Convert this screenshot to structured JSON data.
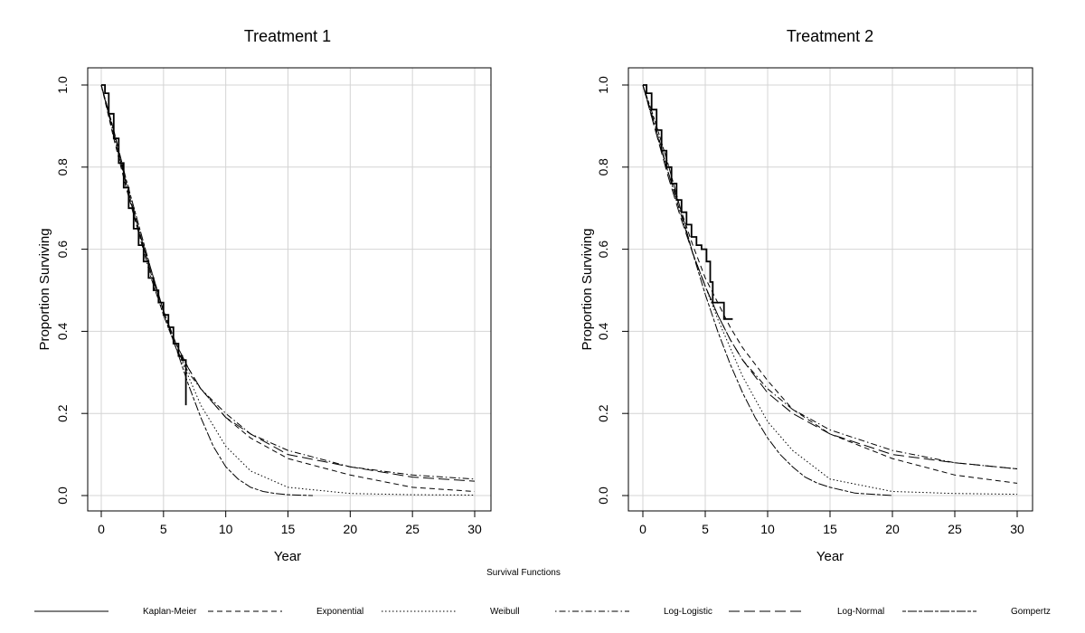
{
  "figure": {
    "legend_title": "Survival Functions"
  },
  "legend": [
    {
      "label": "Kaplan-Meier",
      "style": "solid"
    },
    {
      "label": "Exponential",
      "style": "dashed"
    },
    {
      "label": "Weibull",
      "style": "dotted"
    },
    {
      "label": "Log-Logistic",
      "style": "dotdash"
    },
    {
      "label": "Log-Normal",
      "style": "longdash"
    },
    {
      "label": "Gompertz",
      "style": "twodash"
    }
  ],
  "chart_data": [
    {
      "type": "line",
      "title": "Treatment 1",
      "xlabel": "Year",
      "ylabel": "Proportion Surviving",
      "xlim": [
        0,
        30
      ],
      "ylim": [
        0,
        1
      ],
      "xticks": [
        "0",
        "5",
        "10",
        "15",
        "20",
        "25",
        "30"
      ],
      "yticks": [
        "0.0",
        "0.2",
        "0.4",
        "0.6",
        "0.8",
        "1.0"
      ],
      "grid": true,
      "series": [
        {
          "name": "Kaplan-Meier",
          "style": "solid",
          "step": true,
          "x": [
            0,
            0.3,
            0.6,
            1.0,
            1.4,
            1.8,
            2.2,
            2.6,
            3.0,
            3.4,
            3.8,
            4.2,
            4.6,
            5.0,
            5.4,
            5.8,
            6.2,
            6.5,
            6.8
          ],
          "y": [
            1.0,
            0.98,
            0.93,
            0.87,
            0.81,
            0.75,
            0.7,
            0.65,
            0.61,
            0.57,
            0.53,
            0.5,
            0.47,
            0.44,
            0.41,
            0.37,
            0.34,
            0.33,
            0.22
          ]
        },
        {
          "name": "Exponential",
          "style": "dashed",
          "x": [
            0,
            1,
            2,
            3,
            4,
            5,
            6,
            7,
            8,
            10,
            12,
            15,
            20,
            25,
            30
          ],
          "y": [
            1.0,
            0.87,
            0.75,
            0.64,
            0.55,
            0.45,
            0.37,
            0.31,
            0.26,
            0.19,
            0.14,
            0.09,
            0.05,
            0.02,
            0.01
          ]
        },
        {
          "name": "Weibull",
          "style": "dotted",
          "x": [
            0,
            1,
            2,
            3,
            4,
            5,
            6,
            7,
            8,
            10,
            12,
            15,
            20,
            25,
            30
          ],
          "y": [
            1.0,
            0.88,
            0.76,
            0.65,
            0.54,
            0.44,
            0.36,
            0.29,
            0.22,
            0.12,
            0.06,
            0.02,
            0.005,
            0.002,
            0.001
          ]
        },
        {
          "name": "Log-Logistic",
          "style": "dotdash",
          "x": [
            0,
            1,
            2,
            3,
            4,
            5,
            6,
            7,
            8,
            10,
            12,
            15,
            20,
            25,
            30
          ],
          "y": [
            1.0,
            0.89,
            0.76,
            0.64,
            0.53,
            0.44,
            0.36,
            0.3,
            0.26,
            0.2,
            0.15,
            0.11,
            0.07,
            0.05,
            0.04
          ]
        },
        {
          "name": "Log-Normal",
          "style": "longdash",
          "x": [
            0,
            1,
            2,
            3,
            4,
            5,
            6,
            7,
            8,
            10,
            12,
            15,
            20,
            25,
            30
          ],
          "y": [
            1.0,
            0.88,
            0.76,
            0.65,
            0.54,
            0.45,
            0.37,
            0.31,
            0.26,
            0.19,
            0.15,
            0.1,
            0.07,
            0.045,
            0.035
          ]
        },
        {
          "name": "Gompertz",
          "style": "twodash",
          "x": [
            0,
            1,
            2,
            3,
            4,
            5,
            6,
            7,
            8,
            9,
            10,
            11,
            12,
            13,
            14,
            15,
            17
          ],
          "y": [
            1.0,
            0.89,
            0.77,
            0.66,
            0.55,
            0.45,
            0.36,
            0.27,
            0.19,
            0.12,
            0.07,
            0.04,
            0.02,
            0.01,
            0.005,
            0.002,
            0.0
          ]
        }
      ]
    },
    {
      "type": "line",
      "title": "Treatment 2",
      "xlabel": "Year",
      "ylabel": "Proportion Surviving",
      "xlim": [
        0,
        30
      ],
      "ylim": [
        0,
        1
      ],
      "xticks": [
        "0",
        "5",
        "10",
        "15",
        "20",
        "25",
        "30"
      ],
      "yticks": [
        "0.0",
        "0.2",
        "0.4",
        "0.6",
        "0.8",
        "1.0"
      ],
      "grid": true,
      "series": [
        {
          "name": "Kaplan-Meier",
          "style": "solid",
          "step": true,
          "x": [
            0,
            0.3,
            0.7,
            1.1,
            1.5,
            1.9,
            2.3,
            2.7,
            3.1,
            3.5,
            3.9,
            4.3,
            4.7,
            5.1,
            5.4,
            5.6,
            6.5,
            7.2
          ],
          "y": [
            1.0,
            0.98,
            0.94,
            0.89,
            0.84,
            0.8,
            0.76,
            0.72,
            0.69,
            0.66,
            0.63,
            0.61,
            0.6,
            0.57,
            0.52,
            0.47,
            0.43,
            0.43
          ]
        },
        {
          "name": "Exponential",
          "style": "dashed",
          "x": [
            0,
            1,
            2,
            3,
            4,
            5,
            6,
            7,
            8,
            10,
            12,
            15,
            20,
            25,
            30
          ],
          "y": [
            1.0,
            0.89,
            0.79,
            0.7,
            0.61,
            0.53,
            0.47,
            0.41,
            0.36,
            0.28,
            0.21,
            0.15,
            0.09,
            0.05,
            0.03
          ]
        },
        {
          "name": "Weibull",
          "style": "dotted",
          "x": [
            0,
            1,
            2,
            3,
            4,
            5,
            6,
            7,
            8,
            10,
            12,
            15,
            20,
            25,
            30
          ],
          "y": [
            1.0,
            0.9,
            0.79,
            0.69,
            0.59,
            0.51,
            0.43,
            0.36,
            0.29,
            0.18,
            0.11,
            0.04,
            0.01,
            0.005,
            0.003
          ]
        },
        {
          "name": "Log-Logistic",
          "style": "dotdash",
          "x": [
            0,
            1,
            2,
            3,
            4,
            5,
            6,
            7,
            8,
            10,
            12,
            15,
            20,
            25,
            30
          ],
          "y": [
            1.0,
            0.9,
            0.79,
            0.69,
            0.59,
            0.51,
            0.44,
            0.38,
            0.33,
            0.26,
            0.21,
            0.16,
            0.11,
            0.08,
            0.065
          ]
        },
        {
          "name": "Log-Normal",
          "style": "longdash",
          "x": [
            0,
            1,
            2,
            3,
            4,
            5,
            6,
            7,
            8,
            10,
            12,
            15,
            20,
            25,
            30
          ],
          "y": [
            1.0,
            0.89,
            0.78,
            0.68,
            0.59,
            0.51,
            0.44,
            0.38,
            0.33,
            0.25,
            0.2,
            0.15,
            0.1,
            0.08,
            0.065
          ]
        },
        {
          "name": "Gompertz",
          "style": "twodash",
          "x": [
            0,
            1,
            2,
            3,
            4,
            5,
            6,
            7,
            8,
            9,
            10,
            11,
            12,
            13,
            14,
            15,
            17,
            20
          ],
          "y": [
            1.0,
            0.91,
            0.81,
            0.7,
            0.59,
            0.49,
            0.4,
            0.32,
            0.25,
            0.19,
            0.14,
            0.1,
            0.07,
            0.045,
            0.03,
            0.02,
            0.006,
            0.0
          ]
        }
      ]
    }
  ]
}
